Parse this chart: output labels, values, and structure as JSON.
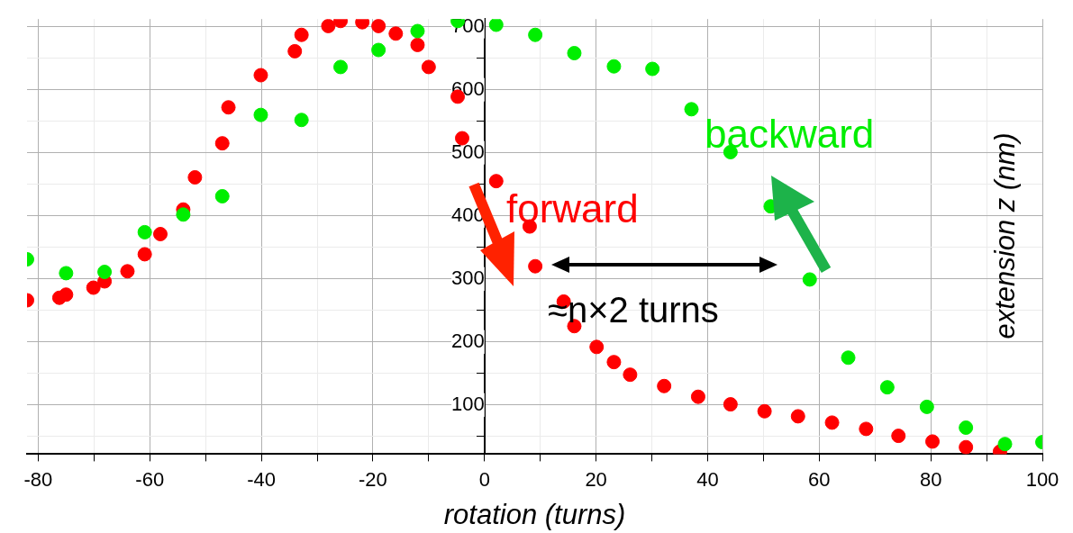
{
  "chart_data": {
    "type": "scatter",
    "xlabel": "rotation (turns)",
    "ylabel": "extension z (nm)",
    "annotations": [
      "≈n×2 turns"
    ],
    "xlim": [
      -82,
      100
    ],
    "xticks": [
      -80,
      {
        "value": -70,
        "label": null
      },
      -60,
      {
        "value": -50,
        "label": null
      },
      -40,
      {
        "value": -30,
        "label": null
      },
      -20,
      {
        "value": -10,
        "label": null
      },
      0,
      {
        "value": 10,
        "label": null
      },
      20,
      {
        "value": 30,
        "label": null
      },
      40,
      {
        "value": 50,
        "label": null
      },
      60,
      {
        "value": 70,
        "label": null
      },
      80,
      {
        "value": 90,
        "label": null
      },
      100
    ],
    "ylim": [
      22,
      712
    ],
    "yticks": [
      {
        "value": 50,
        "label": null
      },
      100,
      {
        "value": 150,
        "label": null
      },
      200,
      {
        "value": 250,
        "label": null
      },
      300,
      {
        "value": 350,
        "label": null
      },
      400,
      {
        "value": 450,
        "label": null
      },
      500,
      {
        "value": 550,
        "label": null
      },
      600,
      {
        "value": 650,
        "label": null
      },
      700
    ],
    "grid": true,
    "legend": false,
    "marker": "circle",
    "series": [
      {
        "name": "forward",
        "color": "#ff0000",
        "x": [
          -82,
          -76.2,
          -75,
          -70.1,
          -68.1,
          -64,
          -60.9,
          -58.1,
          -54,
          -51.9,
          -47,
          -45.9,
          -40.1,
          -34,
          -32.8,
          -28,
          -25.8,
          -21.9,
          -19,
          -15.9,
          -12,
          -10,
          -4.8,
          -4,
          2.1,
          8.1,
          9.1,
          14.2,
          16.1,
          20.1,
          23.2,
          26.1,
          32.2,
          38.3,
          44.1,
          50.2,
          56.2,
          62.3,
          68.4,
          74.2,
          80.3,
          86.3,
          92.4
        ],
        "values": [
          266,
          270,
          275,
          286,
          296,
          312,
          339,
          371,
          410,
          461,
          515,
          572,
          623,
          661,
          687,
          701,
          709,
          707,
          701,
          689,
          671,
          636,
          589,
          523,
          455,
          383,
          320,
          264,
          225,
          192,
          168,
          148,
          130,
          113,
          101,
          90,
          82,
          72,
          62,
          51,
          42,
          33,
          26
        ]
      },
      {
        "name": "backward",
        "color": "#00ee00",
        "x": [
          -82,
          -75,
          -68.1,
          -60.9,
          -54,
          -47,
          -40.1,
          -32.8,
          -25.8,
          -19,
          -12,
          -4.8,
          2.1,
          9.1,
          16.1,
          23.2,
          30.1,
          37.1,
          44.1,
          51.3,
          58.3,
          65.2,
          72.2,
          79.3,
          86.3,
          93.3,
          100
        ],
        "values": [
          331,
          309,
          311,
          374,
          402,
          431,
          560,
          552,
          636,
          663,
          693,
          709,
          703,
          687,
          658,
          637,
          633,
          569,
          501,
          415,
          299,
          175,
          128,
          97,
          64,
          38,
          41
        ]
      }
    ]
  }
}
